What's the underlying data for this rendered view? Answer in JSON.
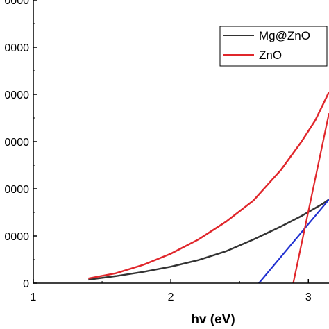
{
  "chart_data": {
    "type": "line",
    "title": "",
    "xlabel": "hv (eV)",
    "ylabel": "",
    "xlim": [
      1,
      3.15
    ],
    "ylim": [
      0,
      12
    ],
    "x_ticks": [
      1,
      2,
      3
    ],
    "x_tick_labels": [
      "1",
      "2",
      "3"
    ],
    "y_ticks": [
      0,
      2,
      4,
      6,
      8,
      10,
      12
    ],
    "y_tick_labels": [
      "0",
      "0000",
      "0000",
      "0000",
      "0000",
      "0000",
      "0000"
    ],
    "grid": false,
    "legend_position": "top-right",
    "series": [
      {
        "name": "Mg@ZnO",
        "color": "#333333",
        "x": [
          1.4,
          1.6,
          1.8,
          2.0,
          2.2,
          2.4,
          2.6,
          2.8,
          2.95,
          3.1,
          3.15
        ],
        "y": [
          0.15,
          0.3,
          0.48,
          0.7,
          0.98,
          1.35,
          1.85,
          2.4,
          2.85,
          3.35,
          3.55
        ]
      },
      {
        "name": "ZnO",
        "color": "#e0262b",
        "x": [
          1.4,
          1.6,
          1.8,
          2.0,
          2.2,
          2.4,
          2.6,
          2.8,
          2.95,
          3.05,
          3.1,
          3.15
        ],
        "y": [
          0.2,
          0.42,
          0.78,
          1.25,
          1.85,
          2.6,
          3.5,
          4.8,
          6.0,
          6.9,
          7.5,
          8.1
        ]
      }
    ],
    "fit_lines": [
      {
        "color": "#1f2fd0",
        "x": [
          2.64,
          3.15
        ],
        "y": [
          0,
          3.55
        ]
      },
      {
        "color": "#e0262b",
        "x": [
          2.89,
          3.15
        ],
        "y": [
          0,
          7.2
        ]
      }
    ]
  }
}
